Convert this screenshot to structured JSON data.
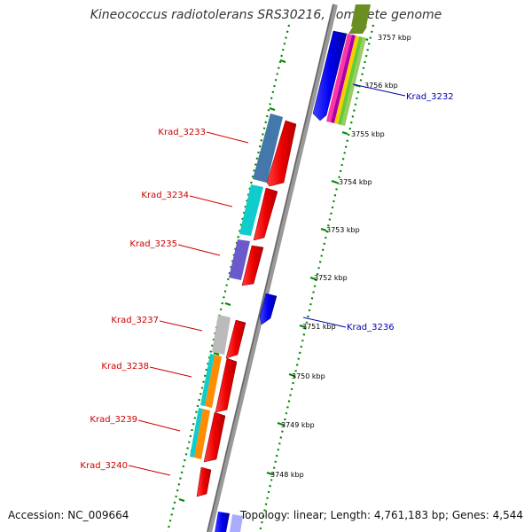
{
  "header": {
    "title": "Kineococcus radiotolerans SRS30216, complete genome"
  },
  "footer": {
    "accession": "Accession: NC_009664",
    "stats": "Topology: linear; Length: 4,761,183 bp; Genes: 4,544"
  },
  "colors": {
    "forward_gene": "#0000ee",
    "reverse_gene": "#ee0000",
    "forward_label": "#0000aa",
    "reverse_label": "#cc0000",
    "backbone": "#888888",
    "tick_dots": "#008800"
  },
  "scale_ticks": [
    "3757 kbp",
    "3756 kbp",
    "3755 kbp",
    "3754 kbp",
    "3753 kbp",
    "3752 kbp",
    "3751 kbp",
    "3750 kbp",
    "3749 kbp",
    "3748 kbp"
  ],
  "genes": [
    {
      "label": "Krad_3232",
      "strand": "forward"
    },
    {
      "label": "Krad_3233",
      "strand": "reverse"
    },
    {
      "label": "Krad_3234",
      "strand": "reverse"
    },
    {
      "label": "Krad_3235",
      "strand": "reverse"
    },
    {
      "label": "Krad_3236",
      "strand": "forward"
    },
    {
      "label": "Krad_3237",
      "strand": "reverse"
    },
    {
      "label": "Krad_3238",
      "strand": "reverse"
    },
    {
      "label": "Krad_3239",
      "strand": "reverse"
    },
    {
      "label": "Krad_3240",
      "strand": "reverse"
    }
  ]
}
